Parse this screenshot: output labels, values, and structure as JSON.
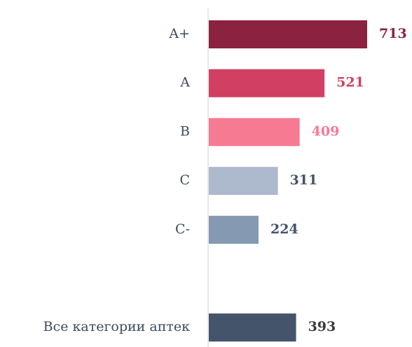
{
  "chart_data": {
    "type": "barh",
    "categories": [
      "A+",
      "A",
      "B",
      "C",
      "C-",
      null,
      "Все категории аптек"
    ],
    "values": [
      713,
      521,
      409,
      311,
      224,
      null,
      393
    ],
    "colors": [
      "#8b2240",
      "#d13f62",
      "#f77a93",
      "#adb9cc",
      "#8599b3",
      null,
      "#44546b"
    ],
    "label_colors": [
      "#8b2240",
      "#d13f62",
      "#f77a93",
      "#44546b",
      "#44546b",
      null,
      "#3a3a3a"
    ]
  }
}
